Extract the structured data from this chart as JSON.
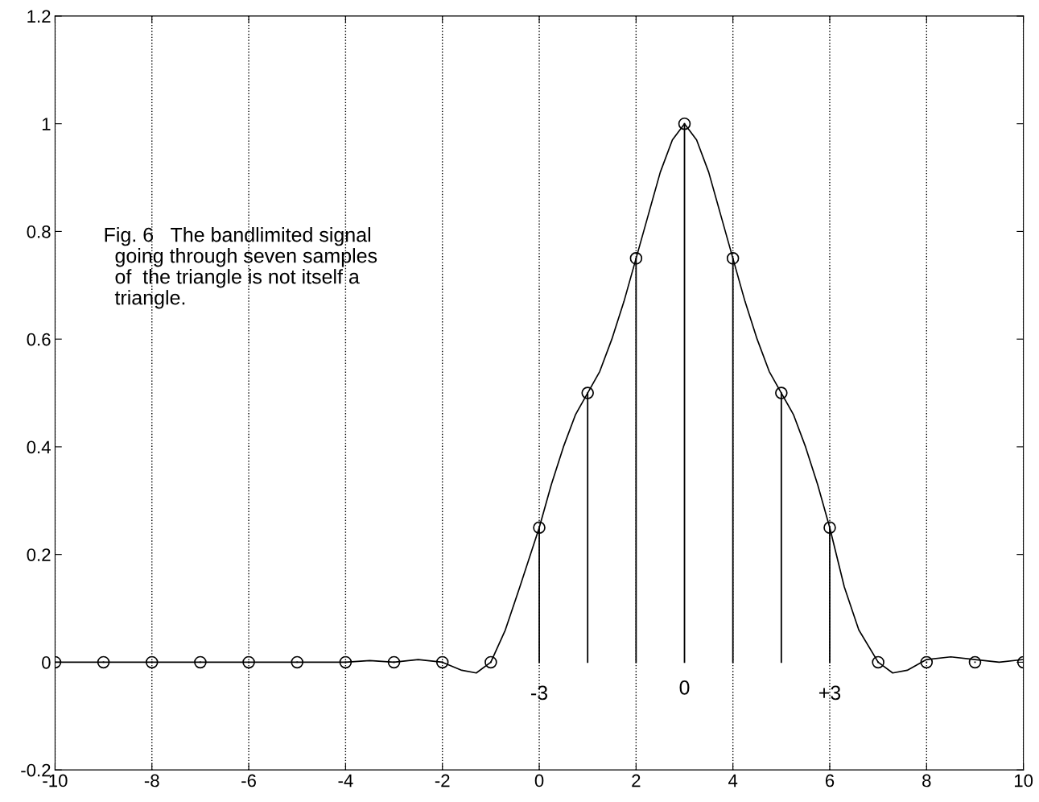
{
  "chart_data": {
    "type": "lollipop",
    "marker": "circle",
    "grid": "x",
    "series": [
      {
        "color": "#000000",
        "x": [
          -10,
          -9,
          -8,
          -7,
          -6,
          -5,
          -4,
          -3,
          -2,
          -1,
          0,
          1,
          2,
          3,
          4,
          5,
          6,
          7,
          8,
          9,
          10
        ],
        "values": [
          0,
          0,
          0,
          0,
          0,
          0,
          0,
          0,
          0,
          0,
          0.25,
          0.5,
          0.75,
          1,
          0.75,
          0.5,
          0.25,
          0,
          0,
          0,
          0
        ]
      },
      {
        "type": "line",
        "color": "#000000",
        "marker": "none",
        "x": [
          -10,
          -9,
          -8,
          -7,
          -6,
          -5,
          -4,
          -3.5,
          -3,
          -2.5,
          -2,
          -1.6,
          -1.3,
          -1,
          -0.7,
          -0.4,
          0,
          0.25,
          0.5,
          0.75,
          1,
          1.25,
          1.5,
          1.75,
          2,
          2.25,
          2.5,
          2.75,
          3,
          3.25,
          3.5,
          3.75,
          4,
          4.25,
          4.5,
          4.75,
          5,
          5.25,
          5.5,
          5.75,
          6,
          6.3,
          6.6,
          7,
          7.3,
          7.6,
          8,
          8.5,
          9,
          9.5,
          10
        ],
        "values": [
          0,
          0,
          0,
          0,
          0,
          0,
          0,
          0.003,
          0,
          0.005,
          0,
          -0.015,
          -0.02,
          0,
          0.06,
          0.14,
          0.25,
          0.33,
          0.4,
          0.46,
          0.5,
          0.54,
          0.6,
          0.67,
          0.75,
          0.83,
          0.91,
          0.97,
          1.0,
          0.97,
          0.91,
          0.83,
          0.75,
          0.67,
          0.6,
          0.54,
          0.5,
          0.46,
          0.4,
          0.33,
          0.25,
          0.14,
          0.06,
          0,
          -0.02,
          -0.015,
          0.005,
          0.01,
          0.005,
          0.0,
          0.005
        ]
      }
    ],
    "xlim": [
      -10,
      10
    ],
    "xticks": [
      -10,
      -8,
      -6,
      -4,
      -2,
      0,
      2,
      4,
      6,
      8,
      10
    ],
    "ylim": [
      -0.2,
      1.2
    ],
    "yticks": [
      -0.2,
      0,
      0.2,
      0.4,
      0.6,
      0.8,
      1,
      1.2
    ],
    "annotations": [
      "-3",
      "0",
      "+3",
      "Fig. 6   The bandlimited signal\n  going through seven samples\n  of  the triangle is not itself a\n  triangle."
    ]
  }
}
